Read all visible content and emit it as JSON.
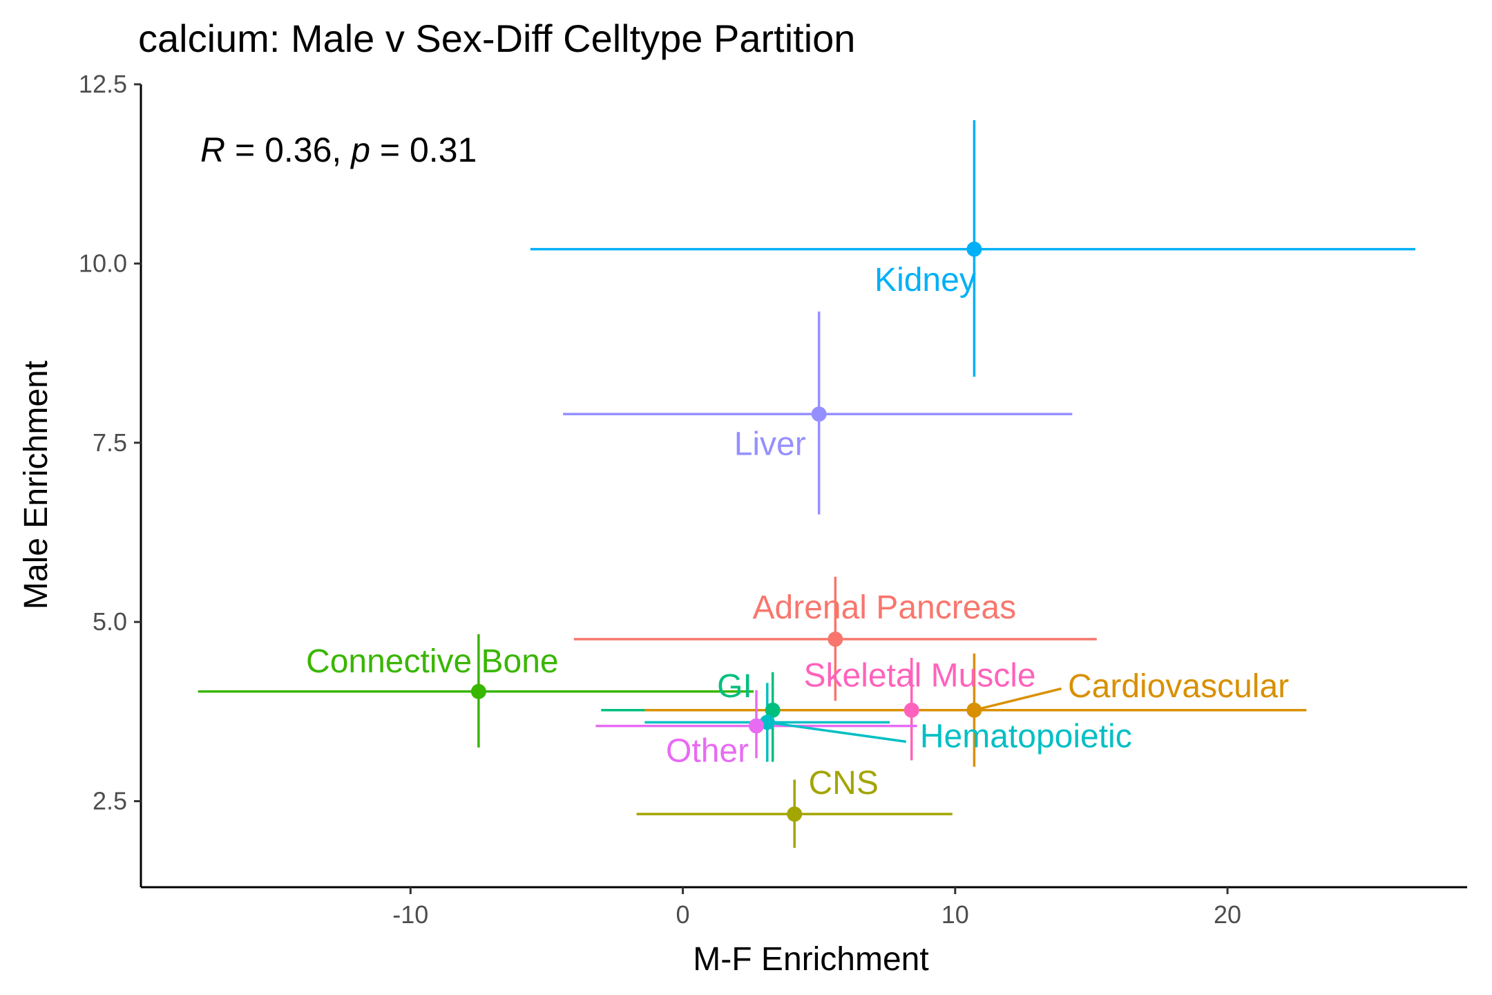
{
  "chart_data": {
    "type": "scatter",
    "title": "calcium: Male v Sex-Diff Celltype Partition",
    "xlabel": "M-F Enrichment",
    "ylabel": "Male Enrichment",
    "xlim": [
      -19.9,
      28.8
    ],
    "ylim": [
      1.3,
      12.5
    ],
    "xticks": [
      -10,
      0,
      10,
      20
    ],
    "xtick_labels": [
      "-10",
      "0",
      "10",
      "20"
    ],
    "yticks": [
      2.5,
      5.0,
      7.5,
      10.0,
      12.5
    ],
    "ytick_labels": [
      "2.5",
      "5.0",
      "7.5",
      "10.0",
      "12.5"
    ],
    "grid": false,
    "legend": "none",
    "annotation": {
      "r_symbol": "R",
      "r_text": " = 0.36, ",
      "p_symbol": "p",
      "p_text": " = 0.31"
    },
    "points": [
      {
        "label": "Kidney",
        "color": "#00B0F6",
        "x": 10.7,
        "y": 10.2,
        "xmin": -5.6,
        "xmax": 26.9,
        "ymin": 8.42,
        "ymax": 12.0,
        "label_x": 8.9,
        "label_y": 9.62,
        "anchor": "middle"
      },
      {
        "label": "Liver",
        "color": "#9590FF",
        "x": 5.0,
        "y": 7.9,
        "xmin": -4.4,
        "xmax": 14.3,
        "ymin": 6.5,
        "ymax": 9.33,
        "label_x": 3.2,
        "label_y": 7.33,
        "anchor": "middle"
      },
      {
        "label": "Adrenal Pancreas",
        "color": "#F8766D",
        "x": 5.6,
        "y": 4.76,
        "xmin": -4.0,
        "xmax": 15.2,
        "ymin": 3.9,
        "ymax": 5.63,
        "label_x": 7.4,
        "label_y": 5.05,
        "anchor": "middle"
      },
      {
        "label": "Connective Bone",
        "color": "#39B600",
        "x": -7.5,
        "y": 4.03,
        "xmin": -17.8,
        "xmax": 2.6,
        "ymin": 3.25,
        "ymax": 4.83,
        "label_x": -9.2,
        "label_y": 4.3,
        "anchor": "middle"
      },
      {
        "label": "GI",
        "color": "#00BF7D",
        "x": 3.3,
        "y": 3.77,
        "xmin": -3.0,
        "xmax": 9.5,
        "ymin": 3.05,
        "ymax": 4.3,
        "label_x": 1.9,
        "label_y": 3.95,
        "anchor": "middle"
      },
      {
        "label": "Skeletal Muscle",
        "color": "#FF62BC",
        "x": 8.4,
        "y": 3.77,
        "xmin": -0.9,
        "xmax": 17.8,
        "ymin": 3.07,
        "ymax": 4.5,
        "label_x": 8.7,
        "label_y": 4.1,
        "anchor": "middle"
      },
      {
        "label": "Cardiovascular",
        "color": "#D89000",
        "x": 10.7,
        "y": 3.77,
        "xmin": -1.4,
        "xmax": 22.9,
        "ymin": 2.98,
        "ymax": 4.56,
        "label_x": 18.2,
        "label_y": 3.95,
        "anchor": "middle",
        "leader": [
          13.9,
          4.07
        ]
      },
      {
        "label": "Hematopoietic",
        "color": "#00BFC4",
        "x": 3.1,
        "y": 3.6,
        "xmin": -1.4,
        "xmax": 7.6,
        "ymin": 3.05,
        "ymax": 4.15,
        "label_x": 12.6,
        "label_y": 3.25,
        "anchor": "middle",
        "leader": [
          8.2,
          3.33
        ]
      },
      {
        "label": "Other",
        "color": "#E76BF3",
        "x": 2.7,
        "y": 3.55,
        "xmin": -3.2,
        "xmax": 8.6,
        "ymin": 3.1,
        "ymax": 4.05,
        "label_x": 0.9,
        "label_y": 3.05,
        "anchor": "middle"
      },
      {
        "label": "CNS",
        "color": "#A3A500",
        "x": 4.1,
        "y": 2.32,
        "xmin": -1.7,
        "xmax": 9.9,
        "ymin": 1.85,
        "ymax": 2.8,
        "label_x": 5.9,
        "label_y": 2.6,
        "anchor": "middle"
      }
    ]
  }
}
